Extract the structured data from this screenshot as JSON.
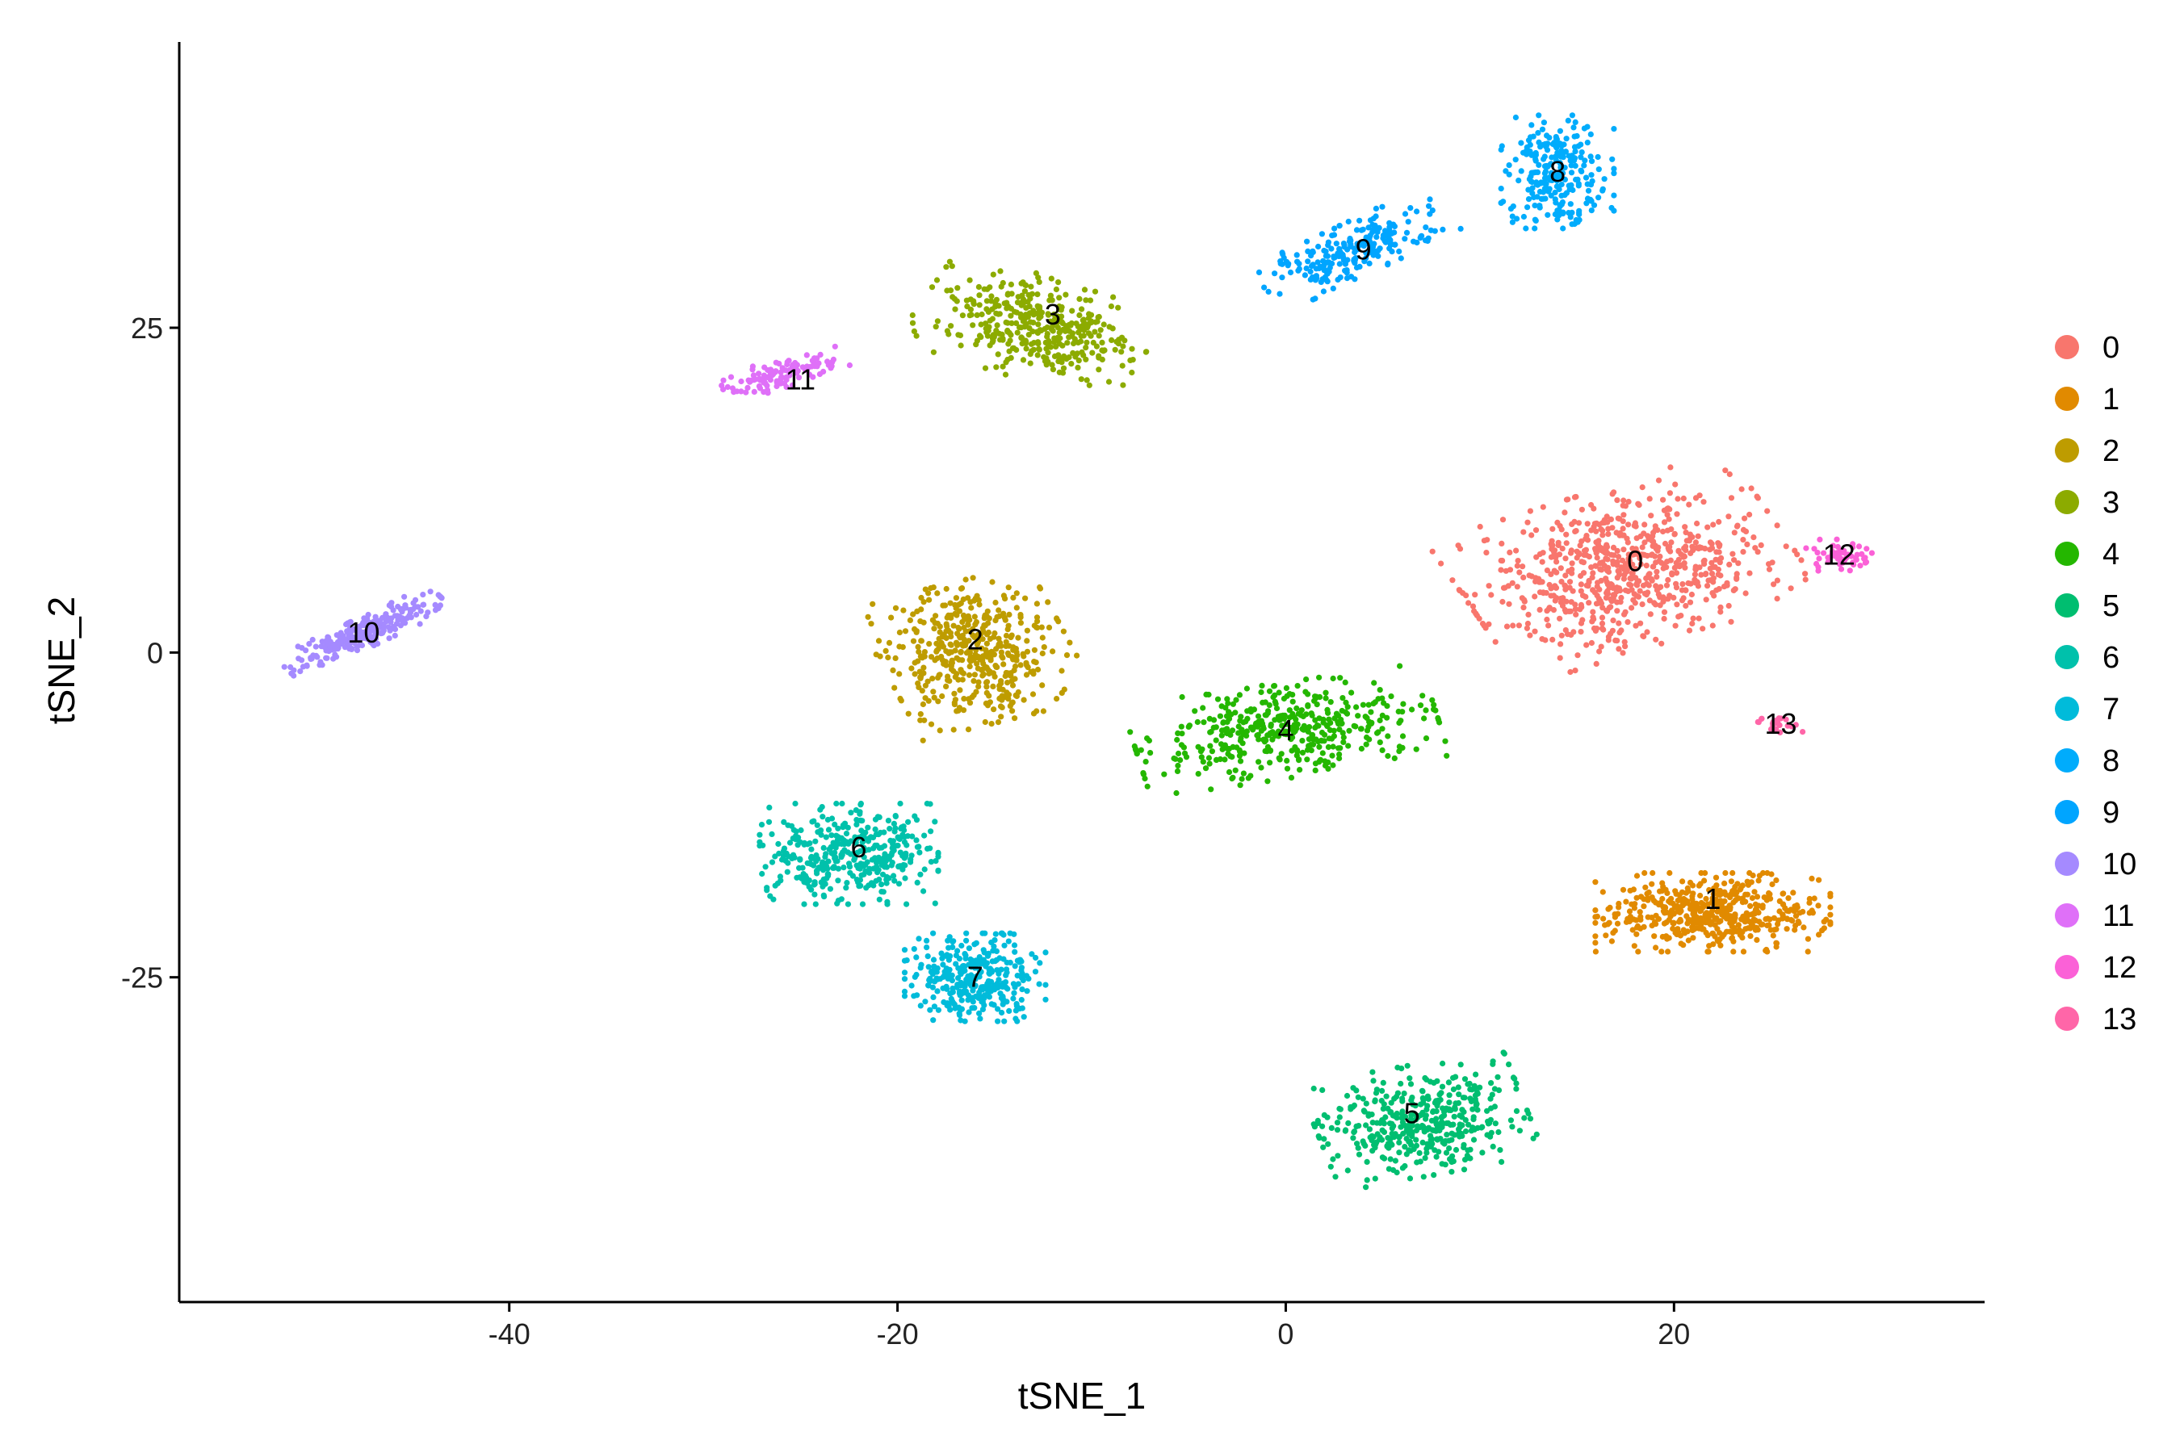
{
  "chart_data": {
    "type": "scatter",
    "xlabel": "tSNE_1",
    "ylabel": "tSNE_2",
    "xlim": [
      -57,
      36
    ],
    "ylim": [
      -50,
      47
    ],
    "x_ticks": [
      -40,
      -20,
      0,
      20
    ],
    "y_ticks": [
      -25,
      0,
      25
    ],
    "x_tick_labels": [
      "-40",
      "-20",
      "0",
      "20"
    ],
    "y_tick_labels": [
      "-25",
      "0",
      "25"
    ],
    "legend_position": "right",
    "grid": false,
    "series": [
      {
        "name": "0",
        "color": "#F8766D",
        "count": 720,
        "center": [
          17.5,
          6.5
        ],
        "spread": [
          7.0,
          5.0
        ],
        "angle": 25,
        "label_pos": [
          18,
          7
        ]
      },
      {
        "name": "1",
        "color": "#E18A00",
        "count": 480,
        "center": [
          22,
          -20
        ],
        "spread": [
          5.0,
          2.5
        ],
        "angle": 0,
        "label_pos": [
          22,
          -19
        ]
      },
      {
        "name": "2",
        "color": "#BE9C00",
        "count": 460,
        "center": [
          -16,
          0
        ],
        "spread": [
          4.0,
          4.5
        ],
        "angle": 20,
        "label_pos": [
          -16,
          1
        ]
      },
      {
        "name": "3",
        "color": "#8CAB00",
        "count": 380,
        "center": [
          -13,
          25
        ],
        "spread": [
          5.0,
          3.2
        ],
        "angle": -25,
        "label_pos": [
          -12,
          26
        ]
      },
      {
        "name": "4",
        "color": "#24B700",
        "count": 420,
        "center": [
          0,
          -6
        ],
        "spread": [
          6.5,
          3.0
        ],
        "angle": 12,
        "label_pos": [
          0,
          -6
        ]
      },
      {
        "name": "5",
        "color": "#00BE70",
        "count": 420,
        "center": [
          7,
          -36
        ],
        "spread": [
          4.5,
          3.5
        ],
        "angle": 15,
        "label_pos": [
          6.5,
          -35.5
        ]
      },
      {
        "name": "6",
        "color": "#00C1AB",
        "count": 380,
        "center": [
          -22.5,
          -15.5
        ],
        "spread": [
          3.8,
          3.2
        ],
        "angle": 0,
        "label_pos": [
          -22,
          -15
        ]
      },
      {
        "name": "7",
        "color": "#00BBDA",
        "count": 330,
        "center": [
          -16,
          -25
        ],
        "spread": [
          3.0,
          2.8
        ],
        "angle": 0,
        "label_pos": [
          -16,
          -25
        ]
      },
      {
        "name": "8",
        "color": "#00ACFC",
        "count": 250,
        "center": [
          14,
          37
        ],
        "spread": [
          2.4,
          3.6
        ],
        "angle": 0,
        "label_pos": [
          14,
          37
        ]
      },
      {
        "name": "9",
        "color": "#00A5FF",
        "count": 230,
        "center": [
          3.5,
          31
        ],
        "spread": [
          4.5,
          1.6
        ],
        "angle": 35,
        "label_pos": [
          4,
          31
        ]
      },
      {
        "name": "10",
        "color": "#A58AFF",
        "count": 230,
        "center": [
          -47.5,
          1.5
        ],
        "spread": [
          4.0,
          0.9
        ],
        "angle": 35,
        "label_pos": [
          -47.5,
          1.5
        ]
      },
      {
        "name": "11",
        "color": "#DF70F8",
        "count": 110,
        "center": [
          -26,
          21.5
        ],
        "spread": [
          3.0,
          0.9
        ],
        "angle": 25,
        "label_pos": [
          -25,
          21
        ]
      },
      {
        "name": "12",
        "color": "#FB61D7",
        "count": 55,
        "center": [
          28.5,
          7.5
        ],
        "spread": [
          1.4,
          1.0
        ],
        "angle": 0,
        "label_pos": [
          28.5,
          7.5
        ]
      },
      {
        "name": "13",
        "color": "#FF66A8",
        "count": 25,
        "center": [
          25.5,
          -5.5
        ],
        "spread": [
          1.2,
          0.6
        ],
        "angle": 0,
        "label_pos": [
          25.5,
          -5.5
        ]
      }
    ]
  }
}
